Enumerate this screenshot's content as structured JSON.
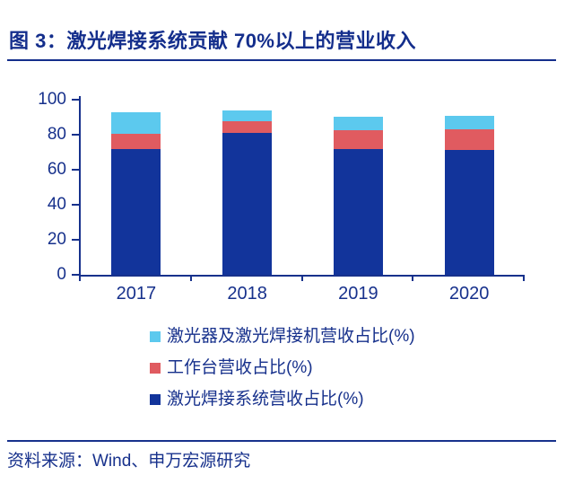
{
  "header": {
    "title": "图 3：激光焊接系统贡献 70%以上的营业收入"
  },
  "footer": {
    "source": "资料来源：Wind、申万宏源研究"
  },
  "colors": {
    "accent_navy": "#142E8C",
    "axis_navy": "#17318C",
    "bar_navy": "#12349B",
    "bar_red": "#E05B60",
    "bar_lightblue": "#5CC9EE"
  },
  "chart_data": {
    "type": "bar",
    "stacked": true,
    "title": "图 3：激光焊接系统贡献 70%以上的营业收入",
    "categories": [
      "2017",
      "2018",
      "2019",
      "2020"
    ],
    "series": [
      {
        "name": "激光器及激光焊接机营收占比(%)",
        "color": "#5CC9EE",
        "values": [
          12.5,
          6.5,
          8,
          8
        ]
      },
      {
        "name": "工作台营收占比(%)",
        "color": "#E05B60",
        "values": [
          8.5,
          6.5,
          10.5,
          11.5
        ]
      },
      {
        "name": "激光焊接系统营收占比(%)",
        "color": "#12349B",
        "values": [
          72,
          81,
          72,
          71.5
        ]
      }
    ],
    "xlabel": "",
    "ylabel": "",
    "ylim": [
      0,
      100
    ],
    "yticks": [
      0,
      20,
      40,
      60,
      80,
      100
    ],
    "grid": false,
    "legend_position": "bottom-left"
  }
}
